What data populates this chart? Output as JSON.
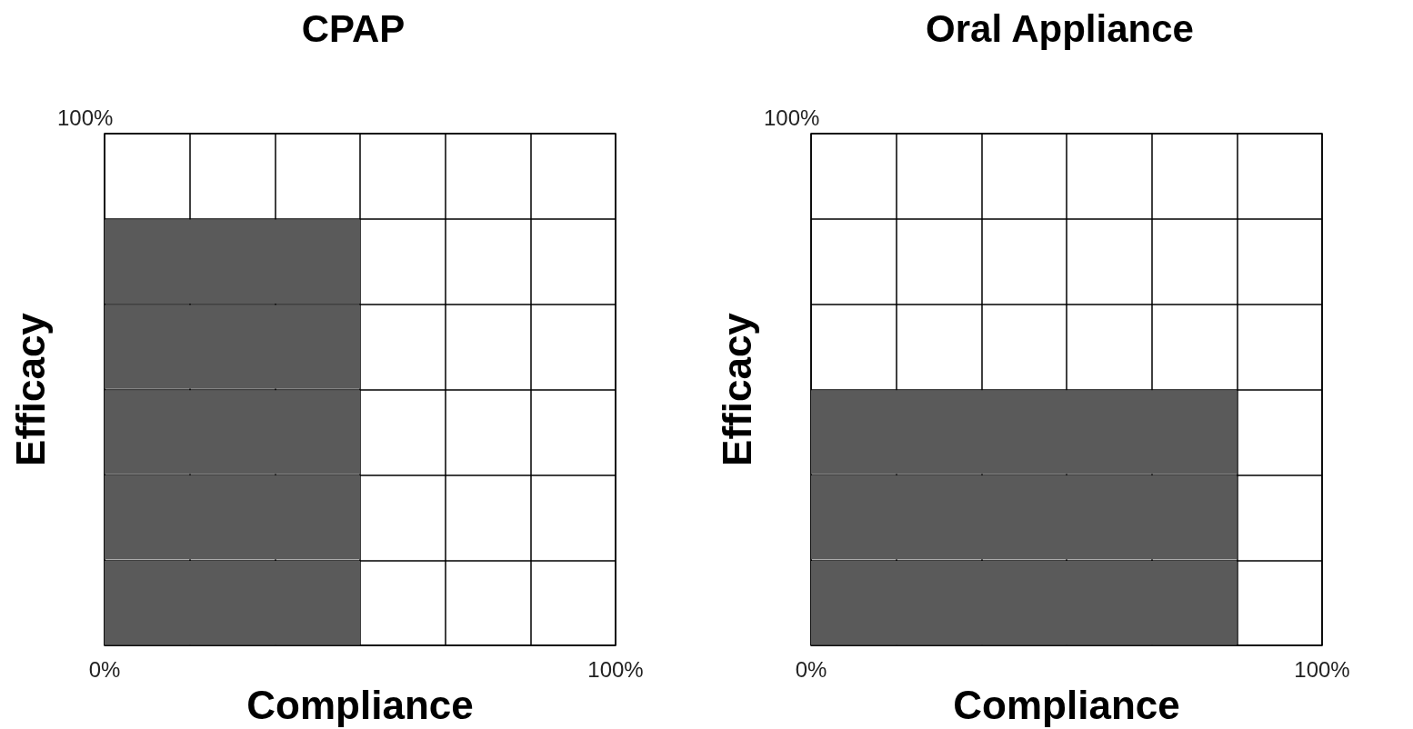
{
  "chart_data": [
    {
      "type": "bar",
      "orientation": "horizontal",
      "title": "CPAP",
      "xlabel": "Compliance",
      "ylabel": "Efficacy",
      "annotations": [
        "100%"
      ],
      "categories": [
        null,
        null,
        null,
        null,
        null,
        null
      ],
      "series": [
        {
          "color": "#5a5a5a",
          "values": [
            null,
            50,
            50,
            50,
            50,
            50
          ]
        }
      ],
      "xlim": [
        0,
        100
      ],
      "xticks": [
        {
          "value": 0,
          "label": "0%"
        },
        {
          "value": 16.67,
          "label": null
        },
        {
          "value": 33.33,
          "label": null
        },
        {
          "value": 50,
          "label": null
        },
        {
          "value": 66.67,
          "label": null
        },
        {
          "value": 83.33,
          "label": null
        },
        {
          "value": 100,
          "label": "100%"
        }
      ],
      "grid": true
    },
    {
      "type": "bar",
      "orientation": "horizontal",
      "title": "Oral Appliance",
      "xlabel": "Compliance",
      "ylabel": "Efficacy",
      "annotations": [
        "100%"
      ],
      "categories": [
        null,
        null,
        null,
        null,
        null,
        null
      ],
      "series": [
        {
          "color": "#5a5a5a",
          "values": [
            null,
            null,
            null,
            83.3,
            83.3,
            83.3
          ]
        }
      ],
      "xlim": [
        0,
        100
      ],
      "xticks": [
        {
          "value": 0,
          "label": "0%"
        },
        {
          "value": 16.67,
          "label": null
        },
        {
          "value": 33.33,
          "label": null
        },
        {
          "value": 50,
          "label": null
        },
        {
          "value": 66.67,
          "label": null
        },
        {
          "value": 83.33,
          "label": null
        },
        {
          "value": 100,
          "label": "100%"
        }
      ],
      "grid": true
    }
  ]
}
